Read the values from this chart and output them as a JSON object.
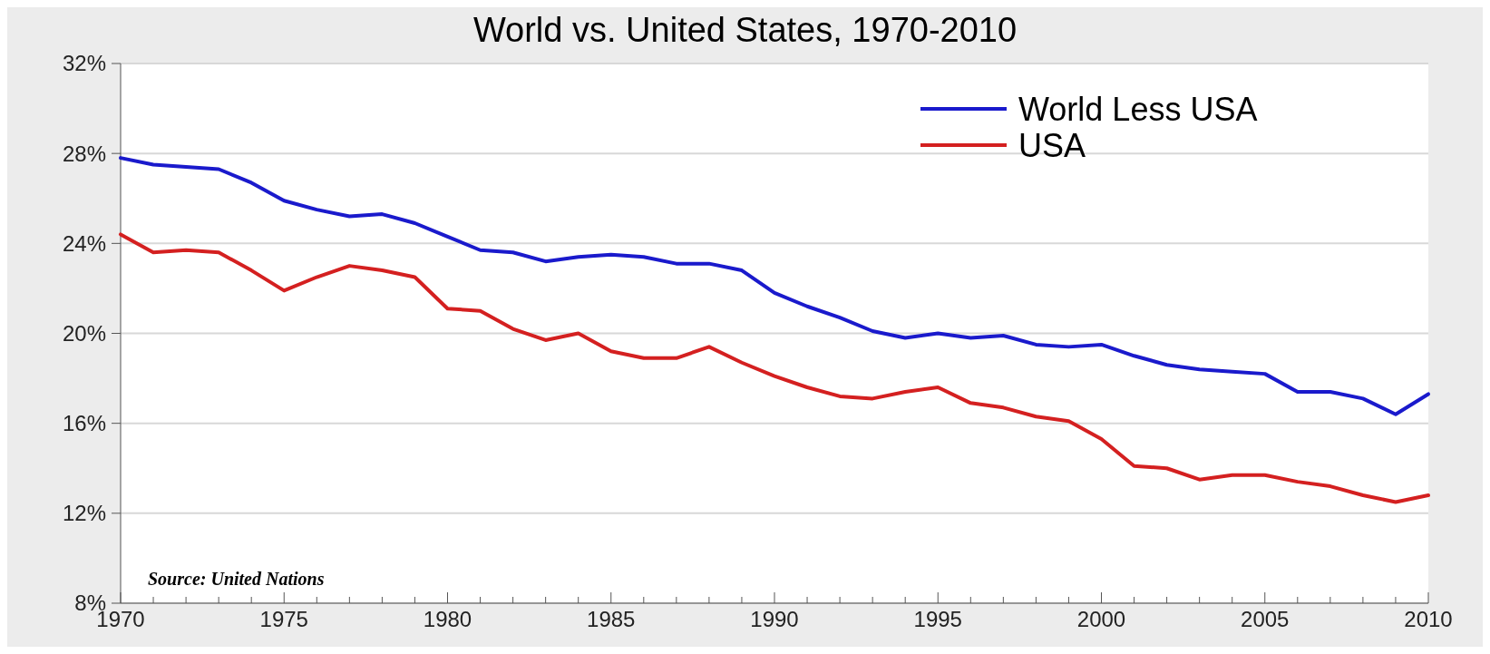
{
  "chart_data": {
    "type": "line",
    "title": "World vs. United States, 1970-2010",
    "x": [
      1970,
      1971,
      1972,
      1973,
      1974,
      1975,
      1976,
      1977,
      1978,
      1979,
      1980,
      1981,
      1982,
      1983,
      1984,
      1985,
      1986,
      1987,
      1988,
      1989,
      1990,
      1991,
      1992,
      1993,
      1994,
      1995,
      1996,
      1997,
      1998,
      1999,
      2000,
      2001,
      2002,
      2003,
      2004,
      2005,
      2006,
      2007,
      2008,
      2009,
      2010
    ],
    "series": [
      {
        "name": "World Less USA",
        "color": "#1a1acc",
        "values": [
          27.8,
          27.5,
          27.4,
          27.3,
          26.7,
          25.9,
          25.5,
          25.2,
          25.3,
          24.9,
          24.3,
          23.7,
          23.6,
          23.2,
          23.4,
          23.5,
          23.4,
          23.1,
          23.1,
          22.8,
          21.8,
          21.2,
          20.7,
          20.1,
          19.8,
          20.0,
          19.8,
          19.9,
          19.5,
          19.4,
          19.5,
          19.0,
          18.6,
          18.4,
          18.3,
          18.2,
          17.4,
          17.4,
          17.1,
          16.4,
          17.3
        ]
      },
      {
        "name": "USA",
        "color": "#d42020",
        "values": [
          24.4,
          23.6,
          23.7,
          23.6,
          22.8,
          21.9,
          22.5,
          23.0,
          22.8,
          22.5,
          21.1,
          21.0,
          20.2,
          19.7,
          20.0,
          19.2,
          18.9,
          18.9,
          19.4,
          18.7,
          18.1,
          17.6,
          17.2,
          17.1,
          17.4,
          17.6,
          16.9,
          16.7,
          16.3,
          16.1,
          15.3,
          14.1,
          14.0,
          13.5,
          13.7,
          13.7,
          13.4,
          13.2,
          12.8,
          12.5,
          12.8
        ]
      }
    ],
    "xlim": [
      1970,
      2010
    ],
    "xticks": [
      1970,
      {
        "value": 1971,
        "label": null
      },
      {
        "value": 1972,
        "label": null
      },
      {
        "value": 1973,
        "label": null
      },
      {
        "value": 1974,
        "label": null
      },
      1975,
      {
        "value": 1976,
        "label": null
      },
      {
        "value": 1977,
        "label": null
      },
      {
        "value": 1978,
        "label": null
      },
      {
        "value": 1979,
        "label": null
      },
      1980,
      {
        "value": 1981,
        "label": null
      },
      {
        "value": 1982,
        "label": null
      },
      {
        "value": 1983,
        "label": null
      },
      {
        "value": 1984,
        "label": null
      },
      1985,
      {
        "value": 1986,
        "label": null
      },
      {
        "value": 1987,
        "label": null
      },
      {
        "value": 1988,
        "label": null
      },
      {
        "value": 1989,
        "label": null
      },
      1990,
      {
        "value": 1991,
        "label": null
      },
      {
        "value": 1992,
        "label": null
      },
      {
        "value": 1993,
        "label": null
      },
      {
        "value": 1994,
        "label": null
      },
      1995,
      {
        "value": 1996,
        "label": null
      },
      {
        "value": 1997,
        "label": null
      },
      {
        "value": 1998,
        "label": null
      },
      {
        "value": 1999,
        "label": null
      },
      2000,
      {
        "value": 2001,
        "label": null
      },
      {
        "value": 2002,
        "label": null
      },
      {
        "value": 2003,
        "label": null
      },
      {
        "value": 2004,
        "label": null
      },
      2005,
      {
        "value": 2006,
        "label": null
      },
      {
        "value": 2007,
        "label": null
      },
      {
        "value": 2008,
        "label": null
      },
      {
        "value": 2009,
        "label": null
      },
      2010
    ],
    "ylim": [
      8,
      32
    ],
    "yticks": [
      {
        "value": 8,
        "label": "8%"
      },
      {
        "value": 12,
        "label": "12%"
      },
      {
        "value": 16,
        "label": "16%"
      },
      {
        "value": 20,
        "label": "20%"
      },
      {
        "value": 24,
        "label": "24%"
      },
      {
        "value": 28,
        "label": "28%"
      },
      {
        "value": 32,
        "label": "32%"
      }
    ],
    "grid": "y",
    "legend": "top right",
    "line_style": "solid",
    "marker": "none",
    "annotations": [
      "Source: United Nations"
    ]
  }
}
